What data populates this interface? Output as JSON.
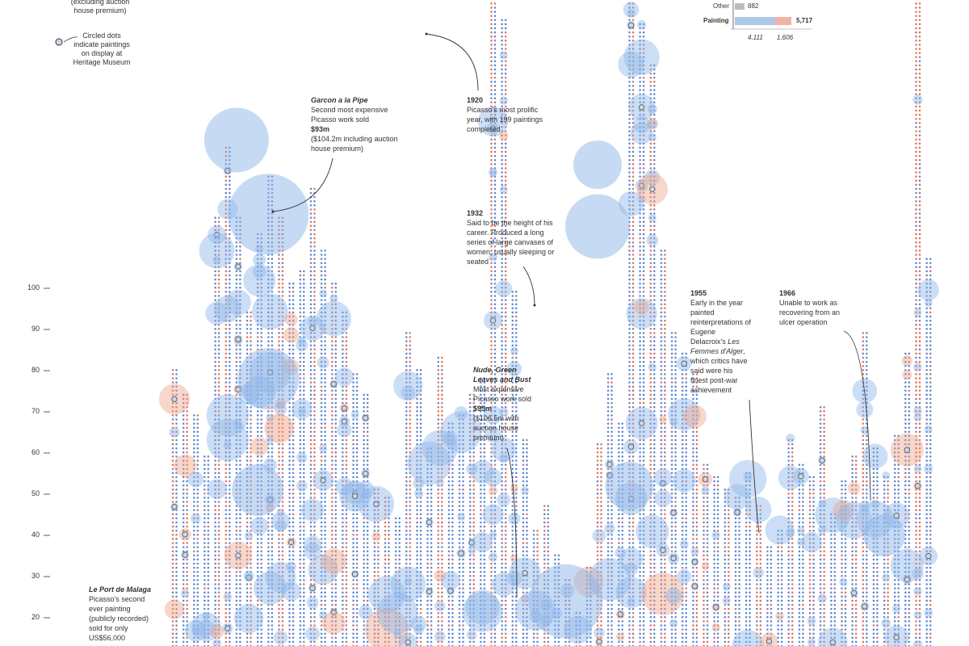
{
  "legend": {
    "premium_note": "(excluding auction house premium)",
    "circled_note": "Circled dots indicate paintings on display at Heritage Museum"
  },
  "mini_chart": {
    "other_label": "Other",
    "other_value": "882",
    "painting_label": "Painting",
    "painting_total": "5,717",
    "painting_blue": "4,111",
    "painting_red": "1,606",
    "colors": {
      "blue": "#adc7e8",
      "red": "#f0b4a3",
      "grey": "#bdbdbd"
    },
    "shares": {
      "other": 0.154,
      "blue": 0.719,
      "red": 0.281
    }
  },
  "annotations": {
    "garcon": {
      "title": "Garcon a la Pipe",
      "text": "Second most expensive Picasso work sold",
      "amount": "$93m",
      "extra": "($104.2m including auction house premium)"
    },
    "y1920": {
      "year": "1920",
      "text": "Picasso's most prolific year, with 199 paintings completed"
    },
    "y1932": {
      "year": "1932",
      "text": "Said to be the height of his career. Produced a long series of large canvases of women, usually sleeping or seated"
    },
    "nude": {
      "title": "Nude, Green Leaves and Bust",
      "text": "Most expensive Picasso work sold",
      "amount": "$95m",
      "extra": "($106.5m with auction house premium)"
    },
    "y1955": {
      "year": "1955",
      "text_before": "Early in the year painted reinterpretations of Eugene Delacroix's",
      "italic": "Les Femmes d'Alger",
      "text_after": ", which critics have said were his finest post-war achievement"
    },
    "y1966": {
      "year": "1966",
      "text": "Unable to work as recovering from an ulcer operation"
    },
    "malaga": {
      "title": "Le Port de Malaga",
      "text": "Picasso's second ever painting (publicly recorded) sold for only US$56,000"
    }
  },
  "chart_data": {
    "type": "scatter",
    "title": "",
    "xlabel": "",
    "ylabel": "",
    "y_ticks": [
      20,
      30,
      40,
      50,
      60,
      70,
      80,
      90,
      100
    ],
    "ylim": [
      5,
      165
    ],
    "x_count": 72,
    "columns": [
      81,
      75,
      70,
      60,
      118,
      135,
      118,
      95,
      114,
      128,
      118,
      102,
      105,
      125,
      110,
      102,
      95,
      80,
      75,
      52,
      50,
      45,
      90,
      81,
      62,
      84,
      68,
      70,
      75,
      79,
      199,
      166,
      100,
      64,
      42,
      48,
      36,
      30,
      22,
      33,
      63,
      80,
      68,
      178,
      165,
      155,
      110,
      90,
      85,
      80,
      58,
      55,
      52,
      50,
      56,
      48,
      38,
      42,
      64,
      58,
      55,
      72,
      46,
      54,
      60,
      90,
      62,
      55,
      65,
      85,
      175,
      108
    ],
    "colors": {
      "blue": "#3f6fc4",
      "red": "#d8553f",
      "bubble_blue": "#8fb6e8",
      "bubble_red": "#f0a38a",
      "circled": "#6e6e6e"
    }
  }
}
